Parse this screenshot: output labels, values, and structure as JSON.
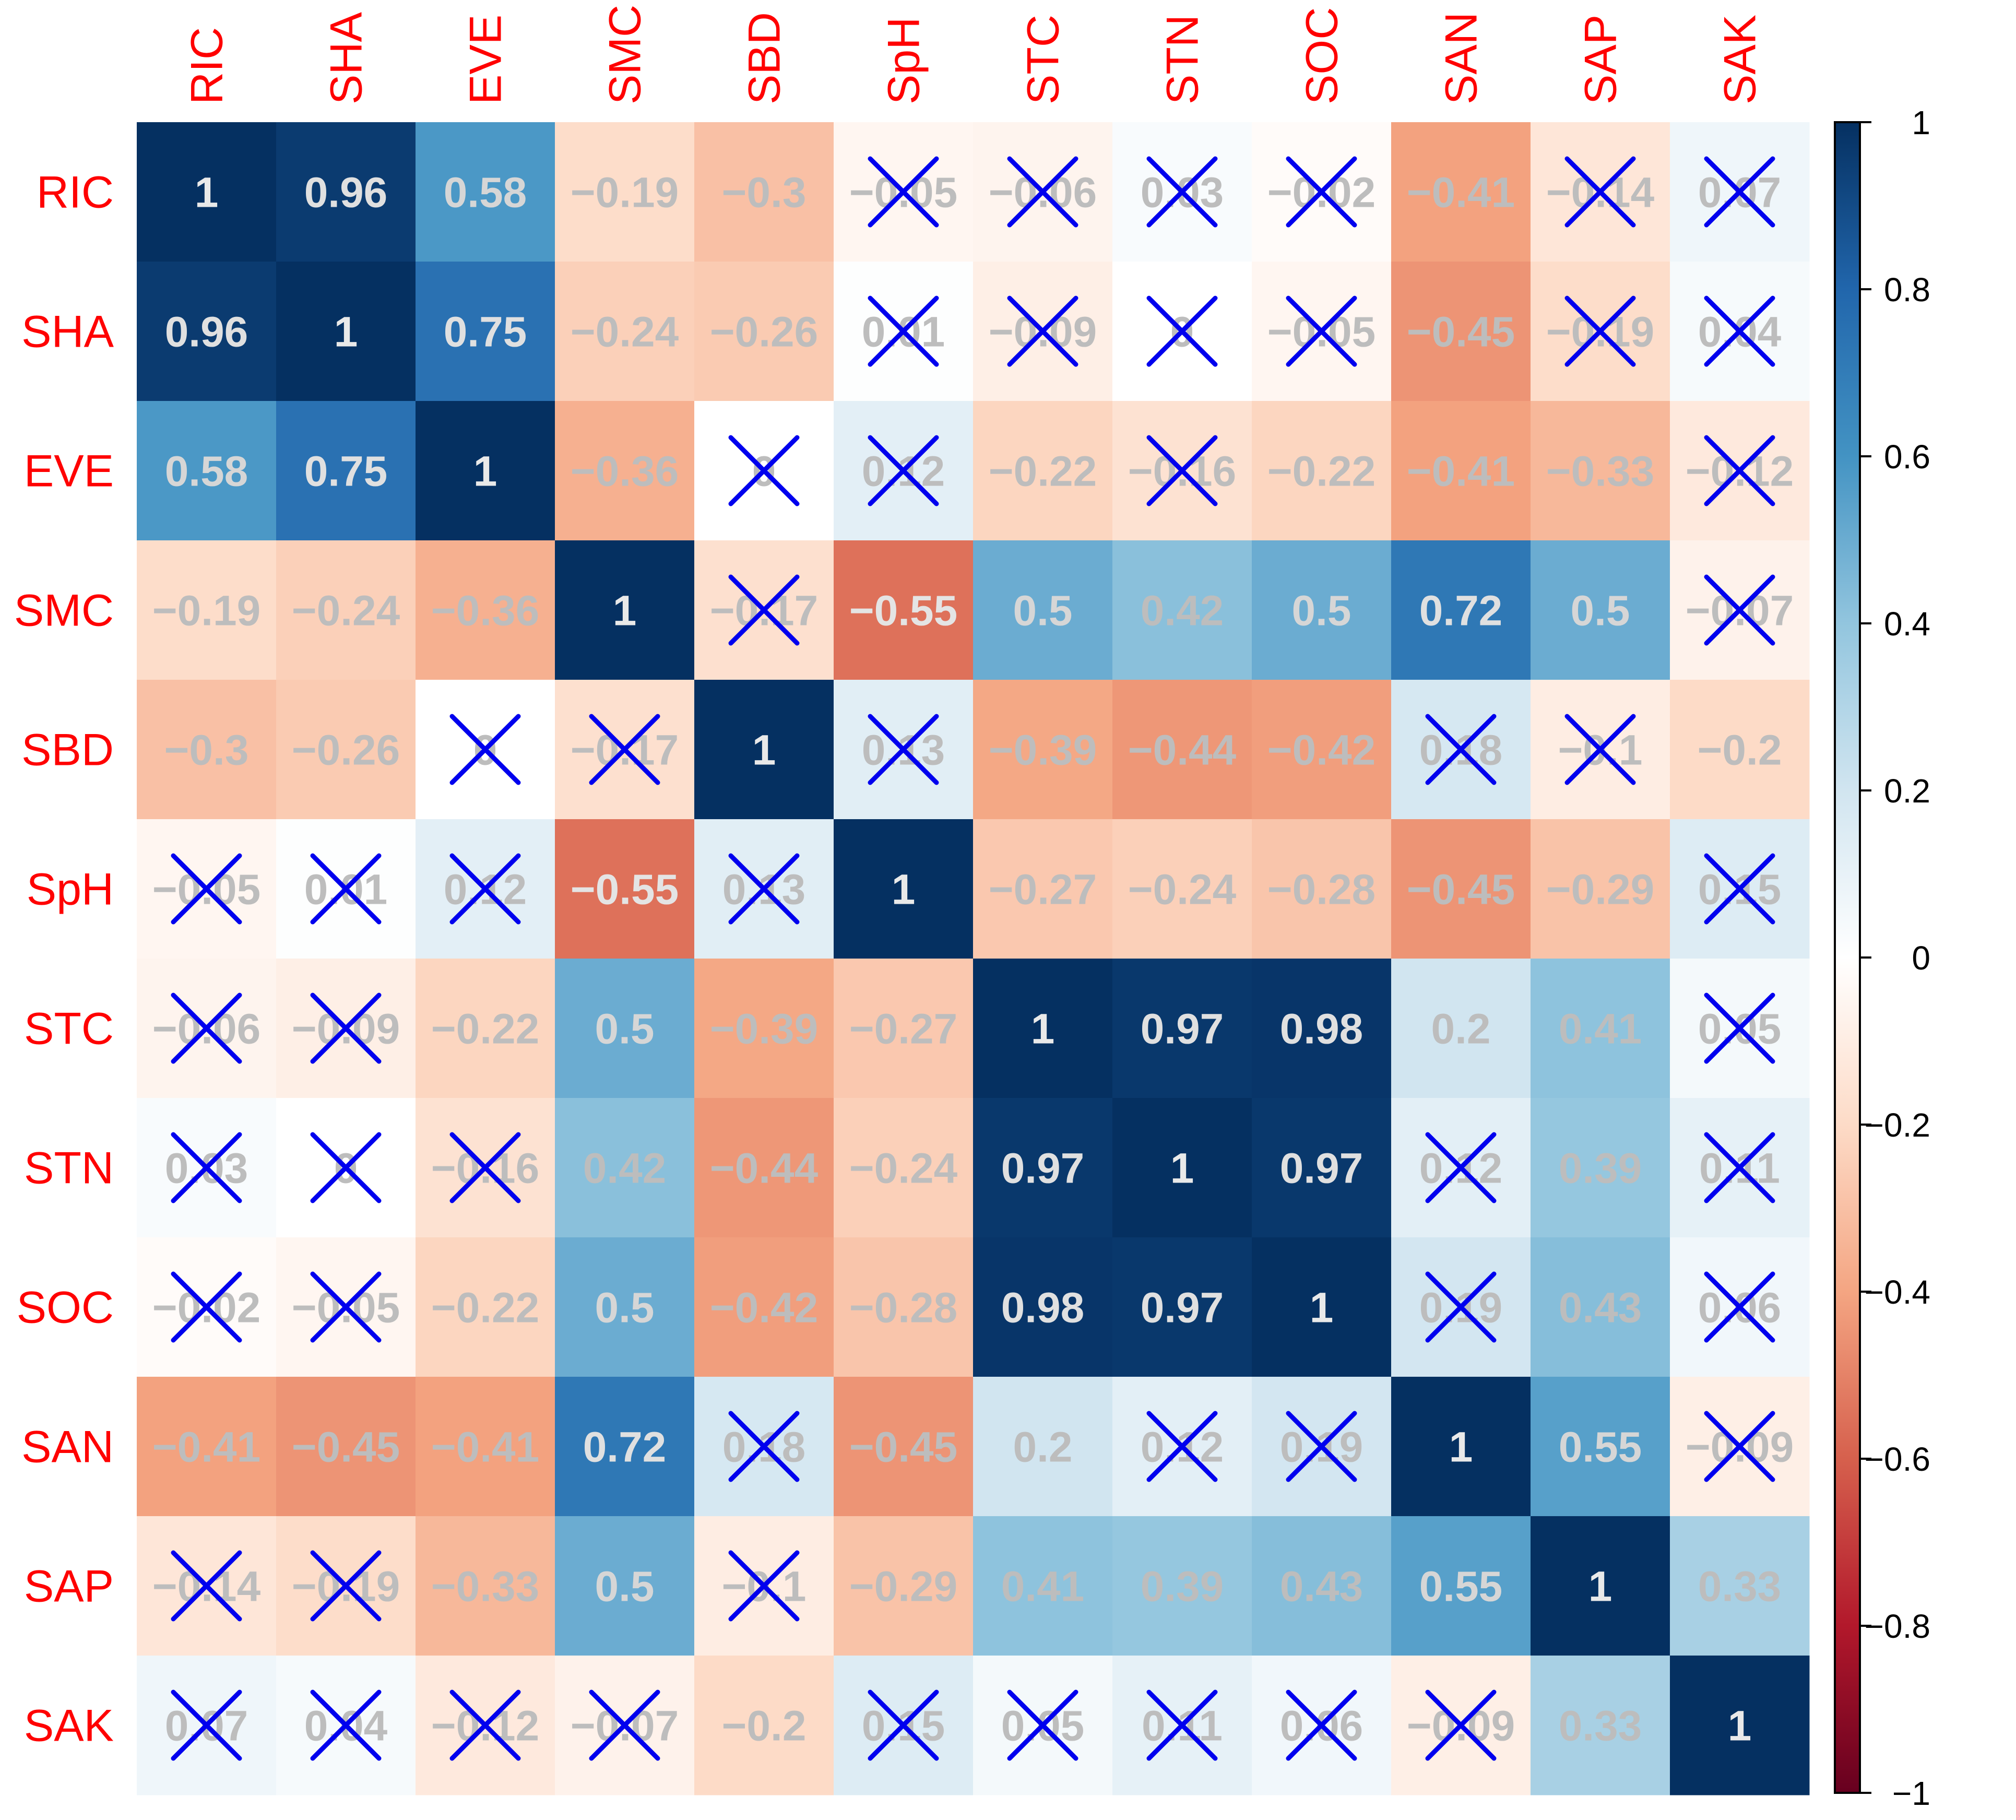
{
  "chart_data": {
    "type": "heatmap",
    "title": "",
    "variables": [
      "RIC",
      "SHA",
      "EVE",
      "SMC",
      "SBD",
      "SpH",
      "STC",
      "STN",
      "SOC",
      "SAN",
      "SAP",
      "SAK"
    ],
    "matrix": [
      [
        1,
        0.96,
        0.58,
        -0.19,
        -0.3,
        -0.05,
        -0.06,
        0.03,
        -0.02,
        -0.41,
        -0.14,
        0.07
      ],
      [
        0.96,
        1,
        0.75,
        -0.24,
        -0.26,
        0.01,
        -0.09,
        0,
        -0.05,
        -0.45,
        -0.19,
        0.04
      ],
      [
        0.58,
        0.75,
        1,
        -0.36,
        0,
        0.12,
        -0.22,
        -0.16,
        -0.22,
        -0.41,
        -0.33,
        -0.12
      ],
      [
        -0.19,
        -0.24,
        -0.36,
        1,
        -0.17,
        -0.55,
        0.5,
        0.42,
        0.5,
        0.72,
        0.5,
        -0.07
      ],
      [
        -0.3,
        -0.26,
        0,
        -0.17,
        1,
        0.13,
        -0.39,
        -0.44,
        -0.42,
        0.18,
        -0.1,
        -0.2
      ],
      [
        -0.05,
        0.01,
        0.12,
        -0.55,
        0.13,
        1,
        -0.27,
        -0.24,
        -0.28,
        -0.45,
        -0.29,
        0.15
      ],
      [
        -0.06,
        -0.09,
        -0.22,
        0.5,
        -0.39,
        -0.27,
        1,
        0.97,
        0.98,
        0.2,
        0.41,
        0.05
      ],
      [
        0.03,
        0,
        -0.16,
        0.42,
        -0.44,
        -0.24,
        0.97,
        1,
        0.97,
        0.12,
        0.39,
        0.11
      ],
      [
        -0.02,
        -0.05,
        -0.22,
        0.5,
        -0.42,
        -0.28,
        0.98,
        0.97,
        1,
        0.19,
        0.43,
        0.06
      ],
      [
        -0.41,
        -0.45,
        -0.41,
        0.72,
        0.18,
        -0.45,
        0.2,
        0.12,
        0.19,
        1,
        0.55,
        -0.09
      ],
      [
        -0.14,
        -0.19,
        -0.33,
        0.5,
        -0.1,
        -0.29,
        0.41,
        0.39,
        0.43,
        0.55,
        1,
        0.33
      ],
      [
        0.07,
        0.04,
        -0.12,
        -0.07,
        -0.2,
        0.15,
        0.05,
        0.11,
        0.06,
        -0.09,
        0.33,
        1
      ]
    ],
    "labels": [
      [
        "1",
        "0.96",
        "0.58",
        "−0.19",
        "−0.3",
        "−0.05",
        "−0.06",
        "0.03",
        "−0.02",
        "−0.41",
        "−0.14",
        "0.07"
      ],
      [
        "0.96",
        "1",
        "0.75",
        "−0.24",
        "−0.26",
        "0.01",
        "−0.09",
        "0",
        "−0.05",
        "−0.45",
        "−0.19",
        "0.04"
      ],
      [
        "0.58",
        "0.75",
        "1",
        "−0.36",
        "0",
        "0.12",
        "−0.22",
        "−0.16",
        "−0.22",
        "−0.41",
        "−0.33",
        "−0.12"
      ],
      [
        "−0.19",
        "−0.24",
        "−0.36",
        "1",
        "−0.17",
        "−0.55",
        "0.5",
        "0.42",
        "0.5",
        "0.72",
        "0.5",
        "−0.07"
      ],
      [
        "−0.3",
        "−0.26",
        "0",
        "−0.17",
        "1",
        "0.13",
        "−0.39",
        "−0.44",
        "−0.42",
        "0.18",
        "−0.1",
        "−0.2"
      ],
      [
        "−0.05",
        "0.01",
        "0.12",
        "−0.55",
        "0.13",
        "1",
        "−0.27",
        "−0.24",
        "−0.28",
        "−0.45",
        "−0.29",
        "0.15"
      ],
      [
        "−0.06",
        "−0.09",
        "−0.22",
        "0.5",
        "−0.39",
        "−0.27",
        "1",
        "0.97",
        "0.98",
        "0.2",
        "0.41",
        "0.05"
      ],
      [
        "0.03",
        "0",
        "−0.16",
        "0.42",
        "−0.44",
        "−0.24",
        "0.97",
        "1",
        "0.97",
        "0.12",
        "0.39",
        "0.11"
      ],
      [
        "−0.02",
        "−0.05",
        "−0.22",
        "0.5",
        "−0.42",
        "−0.28",
        "0.98",
        "0.97",
        "1",
        "0.19",
        "0.43",
        "0.06"
      ],
      [
        "−0.41",
        "−0.45",
        "−0.41",
        "0.72",
        "0.18",
        "−0.45",
        "0.2",
        "0.12",
        "0.19",
        "1",
        "0.55",
        "−0.09"
      ],
      [
        "−0.14",
        "−0.19",
        "−0.33",
        "0.5",
        "−0.1",
        "−0.29",
        "0.41",
        "0.39",
        "0.43",
        "0.55",
        "1",
        "0.33"
      ],
      [
        "0.07",
        "0.04",
        "−0.12",
        "−0.07",
        "−0.2",
        "0.15",
        "0.05",
        "0.11",
        "0.06",
        "−0.09",
        "0.33",
        "1"
      ]
    ],
    "not_significant": [
      [
        false,
        false,
        false,
        false,
        false,
        true,
        true,
        true,
        true,
        false,
        true,
        true
      ],
      [
        false,
        false,
        false,
        false,
        false,
        true,
        true,
        true,
        true,
        false,
        true,
        true
      ],
      [
        false,
        false,
        false,
        false,
        true,
        true,
        false,
        true,
        false,
        false,
        false,
        true
      ],
      [
        false,
        false,
        false,
        false,
        true,
        false,
        false,
        false,
        false,
        false,
        false,
        true
      ],
      [
        false,
        false,
        true,
        true,
        false,
        true,
        false,
        false,
        false,
        true,
        true,
        false
      ],
      [
        true,
        true,
        true,
        false,
        true,
        false,
        false,
        false,
        false,
        false,
        false,
        true
      ],
      [
        true,
        true,
        false,
        false,
        false,
        false,
        false,
        false,
        false,
        false,
        false,
        true
      ],
      [
        true,
        true,
        true,
        false,
        false,
        false,
        false,
        false,
        false,
        true,
        false,
        true
      ],
      [
        true,
        true,
        false,
        false,
        false,
        false,
        false,
        false,
        false,
        true,
        false,
        true
      ],
      [
        false,
        false,
        false,
        false,
        true,
        false,
        false,
        true,
        true,
        false,
        false,
        true
      ],
      [
        true,
        true,
        false,
        false,
        true,
        false,
        false,
        false,
        false,
        false,
        false,
        false
      ],
      [
        true,
        true,
        true,
        true,
        false,
        true,
        true,
        true,
        true,
        true,
        false,
        false
      ]
    ],
    "value_range": [
      -1,
      1
    ],
    "colorbar": {
      "ticks": [
        1,
        0.8,
        0.6,
        0.4,
        0.2,
        0,
        -0.2,
        -0.4,
        -0.6,
        -0.8,
        -1
      ],
      "tick_labels": [
        "1",
        "0.8",
        "0.6",
        "0.4",
        "0.2",
        "0",
        "−0.2",
        "−0.4",
        "−0.6",
        "−0.8",
        "−1"
      ],
      "placement": "right"
    },
    "colors": {
      "negative_end": "#67001f",
      "neutral": "#ffffff",
      "positive_end": "#053061",
      "label_color": "#ff0000",
      "cross_color": "#0000ee",
      "value_text_dark_bg": "#d8d8d8",
      "value_text_light_bg": "#bdbdbd"
    },
    "labels_in_red": true,
    "nonsignificant_marker": "cross"
  }
}
